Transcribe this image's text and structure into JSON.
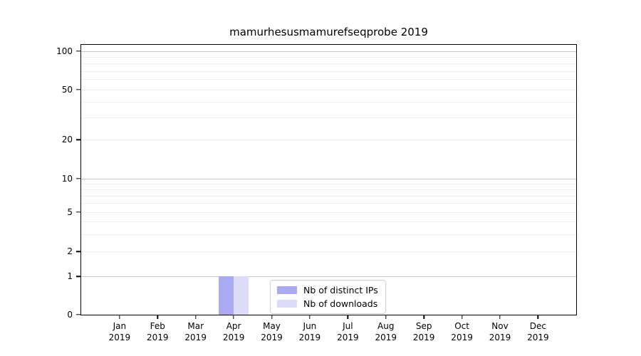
{
  "title": "mamurhesusmamurefseqprobe 2019",
  "chart_data": {
    "type": "bar",
    "title": "mamurhesusmamurefseqprobe 2019",
    "categories": [
      "Jan 2019",
      "Feb 2019",
      "Mar 2019",
      "Apr 2019",
      "May 2019",
      "Jun 2019",
      "Jul 2019",
      "Aug 2019",
      "Sep 2019",
      "Oct 2019",
      "Nov 2019",
      "Dec 2019"
    ],
    "x_months": [
      "Jan",
      "Feb",
      "Mar",
      "Apr",
      "May",
      "Jun",
      "Jul",
      "Aug",
      "Sep",
      "Oct",
      "Nov",
      "Dec"
    ],
    "x_year": "2019",
    "series": [
      {
        "name": "Nb of distinct IPs",
        "color": "#aaaaf2",
        "values": [
          0,
          0,
          0,
          1,
          0,
          0,
          0,
          0,
          0,
          0,
          0,
          0
        ]
      },
      {
        "name": "Nb of downloads",
        "color": "#dcdcf9",
        "values": [
          0,
          0,
          0,
          1,
          0,
          0,
          0,
          0,
          0,
          0,
          0,
          0
        ]
      }
    ],
    "xlabel": "",
    "ylabel": "",
    "yscale": "symlog",
    "yticks": [
      0,
      1,
      2,
      5,
      10,
      20,
      50,
      100
    ],
    "ylim": [
      0,
      110
    ],
    "grid": "horizontal, major and minor",
    "legend_position": "lower center",
    "colors": {
      "major_grid": "#c9c9c9",
      "minor_grid": "#efefef",
      "axis": "#000000",
      "background": "#ffffff"
    }
  }
}
